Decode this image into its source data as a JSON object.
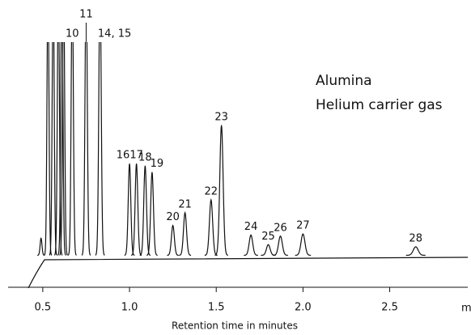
{
  "chart_data": {
    "type": "chromatogram",
    "annotations": [
      "Alumina",
      "Helium carrier gas"
    ],
    "x_label": "Retention time in minutes",
    "x_unit": "min",
    "color": "#111111",
    "xlim": [
      0.3,
      2.95
    ],
    "ylim": [
      -15,
      100
    ],
    "xticks": [
      0.5,
      {
        "value": 1,
        "label": "1.0"
      },
      1.5,
      {
        "value": 2,
        "label": "2.0"
      },
      2.5
    ],
    "peaks": {
      "labels": [
        null,
        null,
        null,
        null,
        null,
        null,
        "10",
        "11",
        "14, 15",
        "16",
        "17",
        "18",
        "19",
        "20",
        "21",
        "22",
        "23",
        "24",
        "25",
        "26",
        "27",
        "28"
      ],
      "x": [
        0.49,
        0.53,
        0.56,
        0.59,
        0.61,
        0.62,
        0.67,
        0.75,
        0.83,
        1.0,
        1.04,
        1.09,
        1.13,
        1.25,
        1.32,
        1.47,
        1.53,
        1.7,
        1.8,
        1.87,
        2.0,
        2.65
      ],
      "heights": [
        8,
        130,
        130,
        130,
        130,
        130,
        130,
        130,
        130,
        43,
        43,
        42,
        39,
        14,
        20,
        26,
        61,
        9.5,
        5,
        9,
        10,
        4
      ]
    }
  }
}
